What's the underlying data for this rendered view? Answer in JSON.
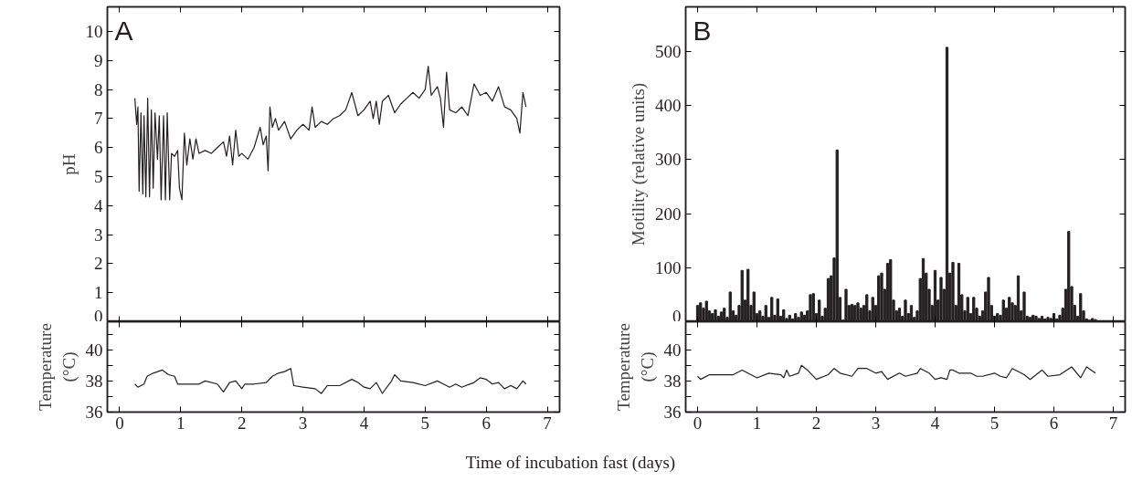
{
  "chart_data": [
    {
      "type": "line",
      "title": "A",
      "ylabel": "pH",
      "xlim": [
        -0.2,
        7.2
      ],
      "ylim": [
        0,
        10.85
      ],
      "xticks": [
        0,
        1,
        2,
        3,
        4,
        5,
        6,
        7
      ],
      "yticks": [
        0,
        1,
        2,
        3,
        4,
        5,
        6,
        7,
        8,
        9,
        10
      ],
      "tick_labels": "y",
      "x": [
        0.25,
        0.28,
        0.3,
        0.32,
        0.35,
        0.38,
        0.4,
        0.43,
        0.46,
        0.49,
        0.52,
        0.55,
        0.58,
        0.62,
        0.65,
        0.68,
        0.72,
        0.75,
        0.78,
        0.82,
        0.85,
        0.9,
        0.95,
        0.98,
        1.02,
        1.06,
        1.1,
        1.15,
        1.2,
        1.25,
        1.3,
        1.4,
        1.5,
        1.6,
        1.7,
        1.75,
        1.8,
        1.85,
        1.9,
        1.95,
        2.0,
        2.1,
        2.2,
        2.3,
        2.35,
        2.4,
        2.43,
        2.46,
        2.5,
        2.55,
        2.6,
        2.7,
        2.8,
        2.9,
        3.0,
        3.1,
        3.15,
        3.2,
        3.3,
        3.4,
        3.5,
        3.6,
        3.7,
        3.8,
        3.9,
        4.0,
        4.1,
        4.15,
        4.2,
        4.25,
        4.3,
        4.4,
        4.5,
        4.6,
        4.7,
        4.8,
        4.9,
        5.0,
        5.05,
        5.1,
        5.2,
        5.25,
        5.3,
        5.35,
        5.4,
        5.5,
        5.6,
        5.7,
        5.8,
        5.9,
        6.0,
        6.1,
        6.2,
        6.3,
        6.4,
        6.5,
        6.55,
        6.6,
        6.65
      ],
      "series": [
        {
          "color": "#231f20",
          "values": [
            7.7,
            6.8,
            7.4,
            4.5,
            7.2,
            4.4,
            7.1,
            4.3,
            7.7,
            4.3,
            7.3,
            4.6,
            7.2,
            5.6,
            7.1,
            4.2,
            7.1,
            4.2,
            7.2,
            4.2,
            5.8,
            5.7,
            5.9,
            4.6,
            4.2,
            6.5,
            5.4,
            6.3,
            5.6,
            6.3,
            5.8,
            5.9,
            5.8,
            6.0,
            6.2,
            5.7,
            6.4,
            5.4,
            6.6,
            5.7,
            5.8,
            5.6,
            6.0,
            6.7,
            6.1,
            6.4,
            5.2,
            7.4,
            6.7,
            7.0,
            6.6,
            6.9,
            6.3,
            6.6,
            6.8,
            6.6,
            7.4,
            6.7,
            6.9,
            6.8,
            7.0,
            7.1,
            7.3,
            7.9,
            7.1,
            7.3,
            7.6,
            7.0,
            7.6,
            6.8,
            7.6,
            7.8,
            7.2,
            7.5,
            7.7,
            7.9,
            7.7,
            8.0,
            8.8,
            7.8,
            8.1,
            7.7,
            6.7,
            8.6,
            7.3,
            7.2,
            7.4,
            7.1,
            8.2,
            7.8,
            7.9,
            7.6,
            8.1,
            7.4,
            7.3,
            7.0,
            6.5,
            7.9,
            7.4
          ]
        }
      ]
    },
    {
      "type": "bar",
      "title": "B",
      "ylabel": "Motility (relative units)",
      "xlim": [
        -0.2,
        7.2
      ],
      "ylim": [
        0,
        583
      ],
      "xticks": [
        0,
        1,
        2,
        3,
        4,
        5,
        6,
        7
      ],
      "yticks": [
        0,
        100,
        200,
        300,
        400,
        500
      ],
      "tick_labels": "y",
      "x": [
        0.0,
        0.05,
        0.1,
        0.15,
        0.2,
        0.25,
        0.3,
        0.35,
        0.4,
        0.45,
        0.5,
        0.55,
        0.6,
        0.65,
        0.7,
        0.75,
        0.8,
        0.85,
        0.9,
        0.95,
        1.0,
        1.05,
        1.1,
        1.15,
        1.2,
        1.25,
        1.3,
        1.35,
        1.4,
        1.45,
        1.5,
        1.55,
        1.6,
        1.65,
        1.7,
        1.75,
        1.8,
        1.85,
        1.9,
        1.95,
        2.0,
        2.05,
        2.1,
        2.15,
        2.2,
        2.25,
        2.3,
        2.35,
        2.4,
        2.45,
        2.5,
        2.55,
        2.6,
        2.65,
        2.7,
        2.75,
        2.8,
        2.85,
        2.9,
        2.95,
        3.0,
        3.05,
        3.1,
        3.15,
        3.2,
        3.25,
        3.3,
        3.35,
        3.4,
        3.45,
        3.5,
        3.55,
        3.6,
        3.65,
        3.7,
        3.75,
        3.8,
        3.85,
        3.9,
        3.95,
        4.0,
        4.05,
        4.1,
        4.15,
        4.2,
        4.25,
        4.3,
        4.35,
        4.4,
        4.45,
        4.5,
        4.55,
        4.6,
        4.65,
        4.7,
        4.75,
        4.8,
        4.85,
        4.9,
        4.95,
        5.0,
        5.05,
        5.1,
        5.15,
        5.2,
        5.25,
        5.3,
        5.35,
        5.4,
        5.45,
        5.5,
        5.55,
        5.6,
        5.65,
        5.7,
        5.75,
        5.8,
        5.85,
        5.9,
        5.95,
        6.0,
        6.05,
        6.1,
        6.15,
        6.2,
        6.25,
        6.3,
        6.35,
        6.4,
        6.45,
        6.5,
        6.55,
        6.6,
        6.65,
        6.7
      ],
      "series": [
        {
          "color": "#231f20",
          "values": [
            30,
            35,
            25,
            38,
            20,
            15,
            22,
            10,
            18,
            25,
            8,
            55,
            20,
            12,
            30,
            95,
            40,
            97,
            30,
            55,
            15,
            20,
            10,
            30,
            8,
            45,
            12,
            42,
            10,
            22,
            6,
            12,
            5,
            15,
            8,
            18,
            12,
            20,
            50,
            52,
            15,
            40,
            10,
            25,
            80,
            85,
            118,
            318,
            45,
            3,
            60,
            30,
            32,
            30,
            35,
            25,
            30,
            50,
            20,
            45,
            30,
            85,
            90,
            60,
            108,
            115,
            40,
            20,
            25,
            10,
            40,
            15,
            30,
            8,
            20,
            80,
            117,
            90,
            60,
            30,
            95,
            40,
            82,
            60,
            508,
            90,
            110,
            30,
            108,
            50,
            20,
            45,
            15,
            45,
            25,
            10,
            20,
            55,
            82,
            30,
            10,
            15,
            12,
            40,
            25,
            45,
            35,
            30,
            85,
            20,
            55,
            10,
            8,
            12,
            10,
            6,
            10,
            5,
            8,
            6,
            15,
            5,
            12,
            25,
            60,
            167,
            65,
            30,
            10,
            52,
            20,
            5,
            3,
            6,
            4
          ]
        }
      ]
    },
    {
      "type": "line",
      "ylabel": "Temperature\n(°C)",
      "xlim": [
        -0.2,
        7.2
      ],
      "ylim": [
        36,
        41.8
      ],
      "xticks": [
        0,
        1,
        2,
        3,
        4,
        5,
        6,
        7
      ],
      "yticks": [
        36,
        {
          "value": 37,
          "label": null
        },
        38,
        {
          "value": 39,
          "label": null
        },
        40,
        {
          "value": 41,
          "label": null
        }
      ],
      "x": [
        0.25,
        0.3,
        0.4,
        0.45,
        0.55,
        0.7,
        0.8,
        0.9,
        0.95,
        1.1,
        1.3,
        1.4,
        1.6,
        1.7,
        1.8,
        1.9,
        2.0,
        2.05,
        2.2,
        2.4,
        2.5,
        2.6,
        2.7,
        2.8,
        2.85,
        3.0,
        3.2,
        3.3,
        3.4,
        3.6,
        3.8,
        3.9,
        4.0,
        4.1,
        4.2,
        4.3,
        4.45,
        4.5,
        4.6,
        4.8,
        5.0,
        5.2,
        5.3,
        5.4,
        5.5,
        5.6,
        5.8,
        5.9,
        6.0,
        6.1,
        6.2,
        6.3,
        6.4,
        6.5,
        6.6,
        6.65
      ],
      "series": [
        {
          "color": "#231f20",
          "values": [
            37.8,
            37.6,
            37.8,
            38.3,
            38.5,
            38.7,
            38.4,
            38.3,
            37.8,
            37.8,
            37.8,
            38.0,
            37.8,
            37.3,
            37.9,
            38.0,
            37.5,
            37.8,
            37.8,
            37.9,
            38.3,
            38.5,
            38.6,
            38.8,
            37.7,
            37.6,
            37.5,
            37.2,
            37.7,
            37.7,
            38.1,
            37.9,
            37.6,
            37.5,
            37.9,
            37.2,
            38.0,
            38.4,
            38.0,
            37.9,
            37.7,
            38.0,
            37.8,
            37.6,
            37.8,
            37.6,
            37.9,
            38.2,
            38.1,
            37.8,
            37.9,
            37.5,
            37.7,
            37.5,
            38.0,
            37.8
          ]
        }
      ]
    },
    {
      "type": "line",
      "ylabel": "Temperature\n(°C)",
      "xlabel": "Time of incubation fast (days)",
      "xlim": [
        -0.2,
        7.2
      ],
      "ylim": [
        36,
        41.8
      ],
      "xticks": [
        0,
        1,
        2,
        3,
        4,
        5,
        6,
        7
      ],
      "yticks": [
        36,
        {
          "value": 37,
          "label": null
        },
        38,
        {
          "value": 39,
          "label": null
        },
        40,
        {
          "value": 41,
          "label": null
        }
      ],
      "x": [
        0.0,
        0.05,
        0.2,
        0.4,
        0.6,
        0.75,
        0.9,
        1.0,
        1.2,
        1.4,
        1.45,
        1.5,
        1.55,
        1.7,
        1.75,
        1.85,
        2.0,
        2.2,
        2.3,
        2.4,
        2.6,
        2.7,
        2.85,
        3.0,
        3.1,
        3.2,
        3.4,
        3.5,
        3.7,
        3.75,
        3.9,
        4.0,
        4.1,
        4.2,
        4.25,
        4.3,
        4.4,
        4.6,
        4.7,
        4.8,
        5.0,
        5.1,
        5.2,
        5.3,
        5.5,
        5.6,
        5.8,
        5.9,
        6.1,
        6.3,
        6.45,
        6.55,
        6.7
      ],
      "series": [
        {
          "color": "#231f20",
          "values": [
            38.3,
            38.1,
            38.4,
            38.4,
            38.4,
            38.7,
            38.4,
            38.2,
            38.5,
            38.4,
            38.2,
            38.7,
            38.3,
            38.5,
            39.0,
            38.7,
            38.1,
            38.4,
            38.8,
            38.5,
            38.3,
            38.8,
            38.8,
            38.5,
            38.6,
            38.1,
            38.5,
            38.3,
            38.5,
            38.8,
            38.5,
            38.1,
            38.2,
            38.1,
            38.7,
            38.7,
            38.5,
            38.5,
            38.3,
            38.3,
            38.5,
            38.3,
            38.2,
            38.8,
            38.4,
            38.1,
            38.7,
            38.3,
            38.4,
            38.9,
            38.2,
            38.9,
            38.5
          ]
        }
      ]
    }
  ]
}
